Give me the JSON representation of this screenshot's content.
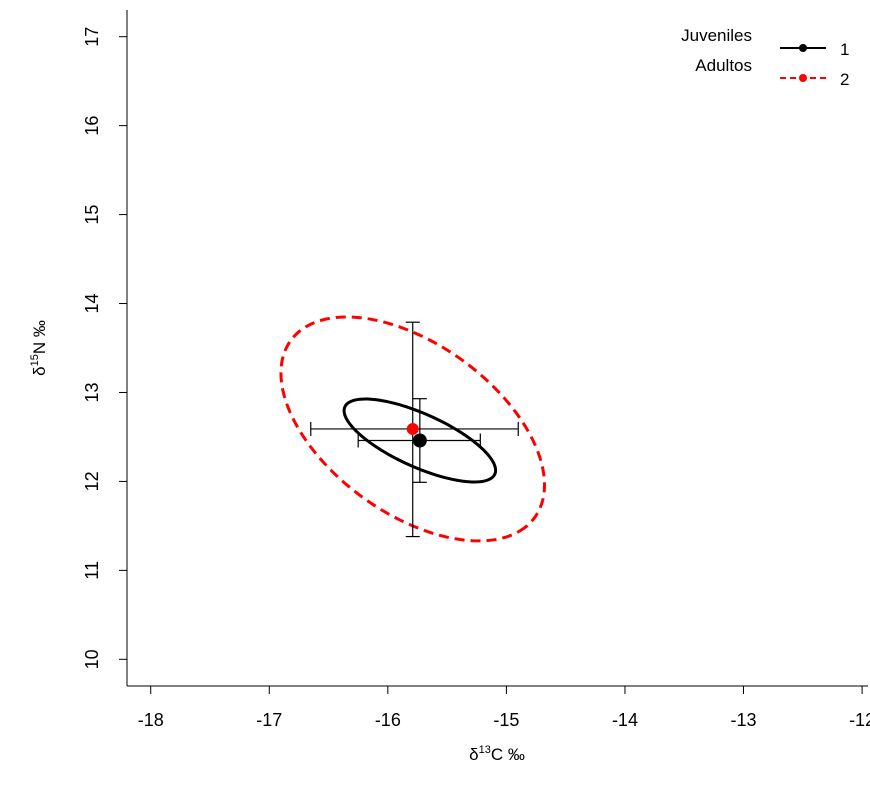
{
  "chart_data": {
    "type": "scatter",
    "xlabel": {
      "prefix": "δ",
      "sup": "13",
      "suffix": "C ‰"
    },
    "ylabel": {
      "prefix": "δ",
      "sup": "15",
      "suffix": "N ‰"
    },
    "xlim": [
      -18.2,
      -11.95
    ],
    "ylim": [
      9.7,
      17.3
    ],
    "x_ticks": [
      -18,
      -17,
      -16,
      -15,
      -14,
      -13,
      -12
    ],
    "y_ticks": [
      10,
      11,
      12,
      13,
      14,
      15,
      16,
      17
    ],
    "grid": false,
    "legend_position": "top-right",
    "series": [
      {
        "name": "1",
        "group_label": "Juveniles",
        "color": "#000000",
        "line_style": "solid",
        "mean": {
          "x": -15.73,
          "y": 12.46
        },
        "error_x": [
          -16.25,
          -15.22
        ],
        "error_y": [
          11.99,
          12.93
        ],
        "ellipse": {
          "cx": -15.73,
          "cy": 12.46,
          "a": 0.74,
          "b": 0.28,
          "angle_deg": -33
        }
      },
      {
        "name": "2",
        "group_label": "Adultos",
        "color": "#ff0000",
        "line_style": "dashed",
        "mean": {
          "x": -15.79,
          "y": 12.59
        },
        "error_x": [
          -16.65,
          -14.9
        ],
        "error_y": [
          11.38,
          13.79
        ],
        "ellipse": {
          "cx": -15.79,
          "cy": 12.59,
          "a": 1.46,
          "b": 0.83,
          "angle_deg": -52
        }
      }
    ]
  }
}
